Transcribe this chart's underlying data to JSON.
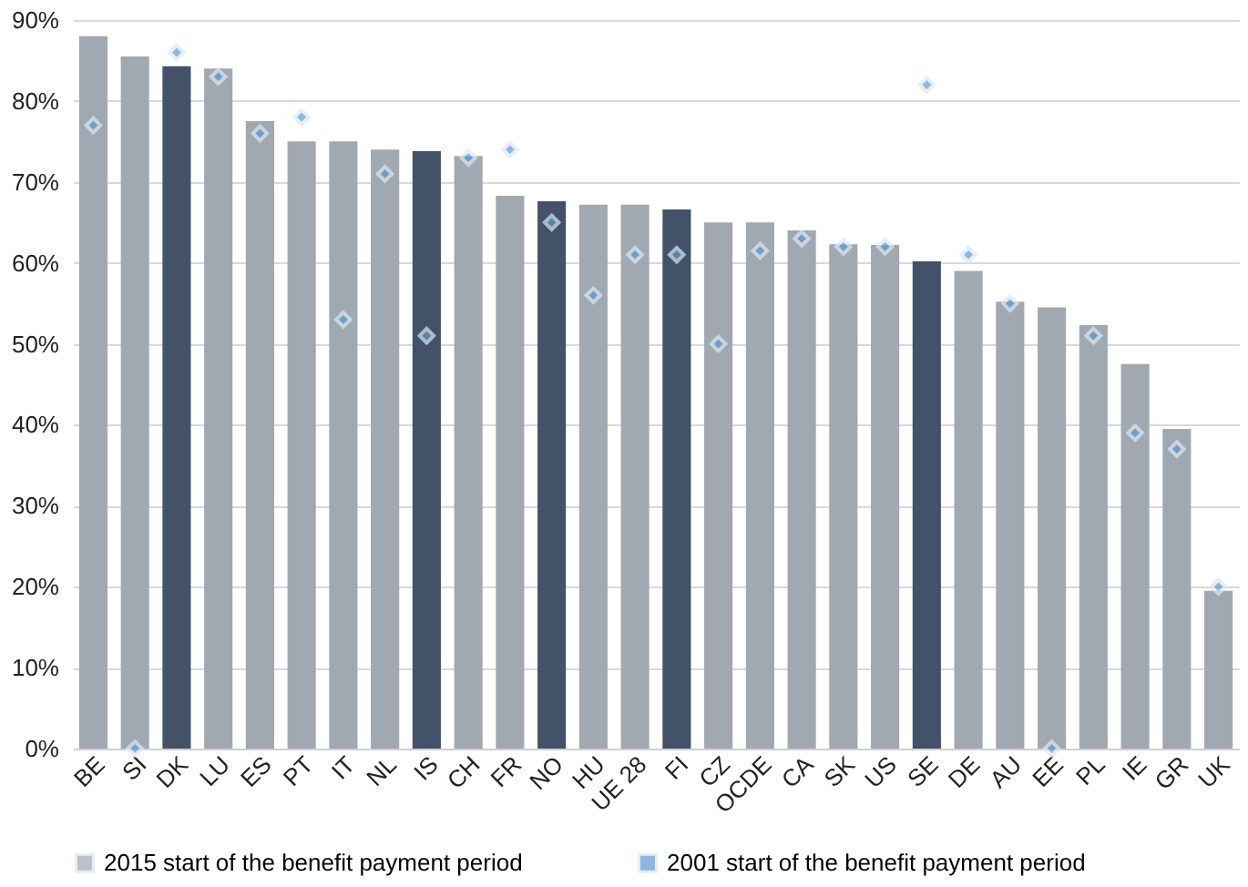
{
  "chart_data": {
    "type": "bar",
    "categories": [
      "BE",
      "SI",
      "DK",
      "LU",
      "ES",
      "PT",
      "IT",
      "NL",
      "IS",
      "CH",
      "FR",
      "NO",
      "HU",
      "UE 28",
      "FI",
      "CZ",
      "OCDE",
      "CA",
      "SK",
      "US",
      "SE",
      "DE",
      "AU",
      "EE",
      "PL",
      "IE",
      "GR",
      "UK"
    ],
    "series": [
      {
        "name": "2015 start of the benefit payment period",
        "color": "#a0a8b1",
        "colors": [
          "#a0a8b1",
          "#a0a8b1",
          "#425268",
          "#a0a8b1",
          "#a0a8b1",
          "#a0a8b1",
          "#a0a8b1",
          "#a0a8b1",
          "#425268",
          "#a0a8b1",
          "#a0a8b1",
          "#425268",
          "#a0a8b1",
          "#a0a8b1",
          "#425268",
          "#a0a8b1",
          "#a0a8b1",
          "#a0a8b1",
          "#a0a8b1",
          "#a0a8b1",
          "#425268",
          "#a0a8b1",
          "#a0a8b1",
          "#a0a8b1",
          "#a0a8b1",
          "#a0a8b1",
          "#a0a8b1",
          "#a0a8b1"
        ],
        "values": [
          88,
          85.5,
          84.3,
          84,
          77.5,
          75,
          75,
          74,
          73.8,
          73.2,
          68.3,
          67.6,
          67.2,
          67.2,
          66.6,
          65,
          65,
          64,
          62.3,
          62.2,
          60.2,
          59,
          55.2,
          54.5,
          52.3,
          47.5,
          39.5,
          19.5
        ]
      },
      {
        "name": "2001 start of the benefit payment period",
        "type": "scatter",
        "color": "#5b9bd5",
        "marker": "diamond",
        "values": [
          77,
          0,
          86,
          83,
          76,
          78,
          53,
          71,
          51,
          73,
          74,
          65,
          56,
          61,
          61,
          50,
          61.5,
          63,
          62,
          62,
          82,
          61,
          55,
          0,
          51,
          39,
          37,
          20
        ]
      }
    ],
    "ylim": [
      0,
      90
    ],
    "yticks": [
      {
        "value": 0,
        "label": "0%"
      },
      {
        "value": 10,
        "label": "10%"
      },
      {
        "value": 20,
        "label": "20%"
      },
      {
        "value": 30,
        "label": "30%"
      },
      {
        "value": 40,
        "label": "40%"
      },
      {
        "value": 50,
        "label": "50%"
      },
      {
        "value": 60,
        "label": "60%"
      },
      {
        "value": 70,
        "label": "70%"
      },
      {
        "value": 80,
        "label": "80%"
      },
      {
        "value": 90,
        "label": "90%"
      }
    ],
    "grid": "y",
    "legend": "bottom"
  }
}
